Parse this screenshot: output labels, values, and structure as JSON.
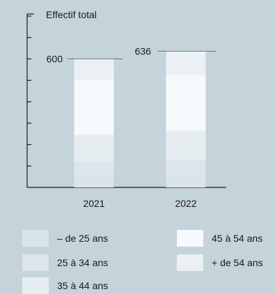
{
  "chart_data": {
    "type": "bar",
    "stacked": true,
    "ylabel": "Effectif total",
    "categories": [
      "2021",
      "2022"
    ],
    "totals": [
      600,
      636
    ],
    "total_labels": [
      "600",
      "636"
    ],
    "ylim": [
      0,
      810
    ],
    "y_tick_step": 100,
    "legend_position": "bottom",
    "series": [
      {
        "name": "– de 25 ans",
        "values": [
          28,
          28
        ],
        "color": "#d9e4ea"
      },
      {
        "name": "25 à 34 ans",
        "values": [
          90,
          101
        ],
        "color": "#dce5eb"
      },
      {
        "name": "35 à 44 ans",
        "values": [
          128,
          135
        ],
        "color": "#e6edf1"
      },
      {
        "name": "45 à 54 ans",
        "values": [
          257,
          262
        ],
        "color": "#f7fafc"
      },
      {
        "name": "+ de 54 ans",
        "values": [
          97,
          110
        ],
        "color": "#eaf0f3"
      }
    ]
  },
  "colors": {
    "background": "#c5d3da",
    "axis": "#1a1a1a",
    "text": "#1a1a1a"
  }
}
